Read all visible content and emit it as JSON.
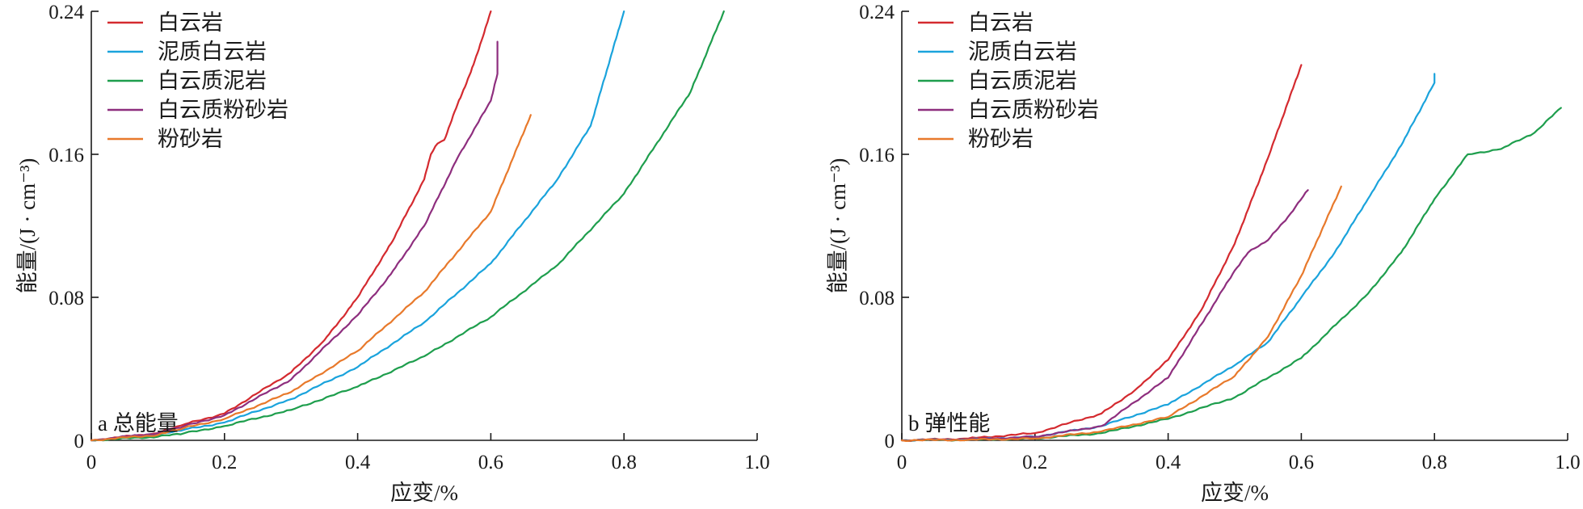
{
  "chart_data": [
    {
      "type": "line",
      "panel_label": "a 总能量",
      "xlabel": "应变/%",
      "ylabel": "能量/(J · cm⁻³)",
      "xlim": [
        0,
        1.0
      ],
      "ylim": [
        0,
        0.24
      ],
      "x_ticks": [
        0,
        0.2,
        0.4,
        0.6,
        0.8,
        1.0
      ],
      "x_tick_labels": [
        "0",
        "0.2",
        "0.4",
        "0.6",
        "0.8",
        "1.0"
      ],
      "y_ticks": [
        0,
        0.08,
        0.16,
        0.24
      ],
      "y_tick_labels": [
        "0",
        "0.08",
        "0.16",
        "0.24"
      ],
      "legend_position": "top-left",
      "grid": false,
      "series": [
        {
          "name": "白云岩",
          "color": "#d42a2f",
          "x": [
            0,
            0.1,
            0.14,
            0.2,
            0.3,
            0.35,
            0.39,
            0.4,
            0.45,
            0.5,
            0.51,
            0.52,
            0.53,
            0.55,
            0.57,
            0.59,
            0.6
          ],
          "y": [
            0,
            0.004,
            0.009,
            0.015,
            0.038,
            0.056,
            0.075,
            0.08,
            0.11,
            0.146,
            0.16,
            0.166,
            0.168,
            0.188,
            0.206,
            0.228,
            0.24
          ]
        },
        {
          "name": "泥质白云岩",
          "color": "#1aa3dc",
          "x": [
            0,
            0.1,
            0.14,
            0.2,
            0.3,
            0.4,
            0.5,
            0.6,
            0.7,
            0.75,
            0.8
          ],
          "y": [
            0,
            0.003,
            0.006,
            0.01,
            0.023,
            0.041,
            0.066,
            0.099,
            0.146,
            0.176,
            0.24
          ]
        },
        {
          "name": "白云质泥岩",
          "color": "#1e9e4d",
          "x": [
            0,
            0.1,
            0.14,
            0.2,
            0.3,
            0.4,
            0.5,
            0.6,
            0.7,
            0.8,
            0.9,
            0.95
          ],
          "y": [
            0,
            0.002,
            0.004,
            0.008,
            0.017,
            0.03,
            0.047,
            0.069,
            0.098,
            0.138,
            0.195,
            0.24
          ]
        },
        {
          "name": "白云质粉砂岩",
          "color": "#8e2e7e",
          "x": [
            0,
            0.1,
            0.14,
            0.2,
            0.3,
            0.4,
            0.45,
            0.5,
            0.55,
            0.6,
            0.61,
            0.61
          ],
          "y": [
            0,
            0.004,
            0.008,
            0.014,
            0.034,
            0.07,
            0.093,
            0.12,
            0.158,
            0.19,
            0.205,
            0.223
          ]
        },
        {
          "name": "粉砂岩",
          "color": "#e8792b",
          "x": [
            0,
            0.1,
            0.14,
            0.2,
            0.3,
            0.4,
            0.5,
            0.6,
            0.66
          ],
          "y": [
            0,
            0.003,
            0.007,
            0.012,
            0.027,
            0.05,
            0.083,
            0.128,
            0.182
          ]
        }
      ]
    },
    {
      "type": "line",
      "panel_label": "b 弹性能",
      "xlabel": "应变/%",
      "ylabel": "能量/(J · cm⁻³)",
      "xlim": [
        0,
        1.0
      ],
      "ylim": [
        0,
        0.24
      ],
      "x_ticks": [
        0,
        0.2,
        0.4,
        0.6,
        0.8,
        1.0
      ],
      "x_tick_labels": [
        "0",
        "0.2",
        "0.4",
        "0.6",
        "0.8",
        "1.0"
      ],
      "y_ticks": [
        0,
        0.08,
        0.16,
        0.24
      ],
      "y_tick_labels": [
        "0",
        "0.08",
        "0.16",
        "0.24"
      ],
      "legend_position": "top-left",
      "grid": false,
      "series": [
        {
          "name": "白云岩",
          "color": "#d42a2f",
          "x": [
            0,
            0.1,
            0.2,
            0.3,
            0.35,
            0.4,
            0.45,
            0.5,
            0.55,
            0.6
          ],
          "y": [
            0,
            0.001,
            0.004,
            0.015,
            0.028,
            0.045,
            0.073,
            0.11,
            0.158,
            0.21
          ]
        },
        {
          "name": "泥质白云岩",
          "color": "#1aa3dc",
          "x": [
            0,
            0.1,
            0.2,
            0.3,
            0.4,
            0.5,
            0.55,
            0.6,
            0.65,
            0.7,
            0.75,
            0.8,
            0.8
          ],
          "y": [
            0,
            0.0005,
            0.002,
            0.008,
            0.02,
            0.042,
            0.055,
            0.08,
            0.105,
            0.135,
            0.165,
            0.2,
            0.205
          ]
        },
        {
          "name": "白云质泥岩",
          "color": "#1e9e4d",
          "x": [
            0,
            0.1,
            0.2,
            0.3,
            0.4,
            0.5,
            0.6,
            0.7,
            0.75,
            0.8,
            0.85,
            0.9,
            0.95,
            0.99
          ],
          "y": [
            0,
            0.0003,
            0.001,
            0.004,
            0.012,
            0.024,
            0.046,
            0.082,
            0.105,
            0.135,
            0.16,
            0.163,
            0.172,
            0.186
          ]
        },
        {
          "name": "白云质粉砂岩",
          "color": "#8e2e7e",
          "x": [
            0,
            0.1,
            0.2,
            0.3,
            0.4,
            0.45,
            0.5,
            0.52,
            0.55,
            0.58,
            0.61
          ],
          "y": [
            0,
            0.0005,
            0.002,
            0.008,
            0.035,
            0.065,
            0.095,
            0.105,
            0.112,
            0.125,
            0.14
          ]
        },
        {
          "name": "粉砂岩",
          "color": "#e8792b",
          "x": [
            0,
            0.1,
            0.2,
            0.3,
            0.4,
            0.5,
            0.55,
            0.6,
            0.66
          ],
          "y": [
            0,
            0.0003,
            0.001,
            0.005,
            0.013,
            0.036,
            0.058,
            0.092,
            0.142
          ]
        }
      ]
    }
  ]
}
